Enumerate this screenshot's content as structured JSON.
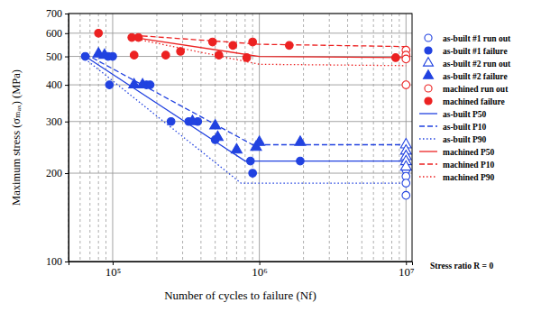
{
  "chart_data": {
    "type": "scatter",
    "x_label": "Number of cycles to failure (Nf)",
    "y_label": "Maximum stress (σₘₐₓ) (MPa)",
    "annotation": "Stress ratio R = 0",
    "log": true,
    "grid": true,
    "legend": "right",
    "xlim": [
      50000,
      11000000
    ],
    "ylim": [
      100,
      700
    ],
    "xticks": [
      {
        "value": 100000,
        "label": "10⁵"
      },
      {
        "value": 1000000,
        "label": "10⁶"
      },
      {
        "value": 10000000,
        "label": "10⁷"
      }
    ],
    "yticks": [
      100,
      200,
      300,
      400,
      500,
      600,
      700
    ],
    "series": [
      {
        "name": "as-built #1 run out",
        "type": "scatter",
        "color": "#2142e0",
        "marker": "circle-open",
        "x": [
          10000000,
          10000000,
          10000000,
          10000000
        ],
        "values": [
          205,
          195,
          185,
          168
        ]
      },
      {
        "name": "as-built #1 failure",
        "type": "scatter",
        "color": "#2142e0",
        "marker": "circle",
        "x": [
          65000,
          93000,
          95000,
          100000,
          170000,
          180000,
          250000,
          330000,
          380000,
          500000,
          870000,
          900000,
          1900000
        ],
        "values": [
          500,
          500,
          400,
          500,
          400,
          400,
          300,
          300,
          300,
          260,
          220,
          200,
          220
        ]
      },
      {
        "name": "as-built #2 run out",
        "type": "scatter",
        "color": "#2142e0",
        "marker": "triangle-open",
        "x": [
          10000000,
          10000000,
          10000000,
          10000000,
          10000000
        ],
        "values": [
          250,
          238,
          228,
          219,
          210
        ]
      },
      {
        "name": "as-built #2 failure",
        "type": "scatter",
        "color": "#2142e0",
        "marker": "triangle",
        "x": [
          80000,
          88000,
          140000,
          160000,
          350000,
          500000,
          520000,
          700000,
          950000,
          1000000,
          1900000
        ],
        "values": [
          510,
          505,
          400,
          400,
          300,
          290,
          265,
          240,
          245,
          255,
          255
        ]
      },
      {
        "name": "machined run out",
        "type": "scatter",
        "color": "#ec2222",
        "marker": "circle-open",
        "x": [
          10000000,
          10000000,
          10000000,
          10000000
        ],
        "values": [
          525,
          505,
          490,
          400
        ]
      },
      {
        "name": "machined failure",
        "type": "scatter",
        "color": "#ec2222",
        "marker": "circle",
        "x": [
          80000,
          135000,
          150000,
          140000,
          230000,
          290000,
          480000,
          530000,
          660000,
          820000,
          900000,
          1600000,
          8500000
        ],
        "values": [
          600,
          580,
          580,
          505,
          505,
          520,
          560,
          505,
          545,
          495,
          560,
          545,
          495
        ]
      },
      {
        "name": "as-built P50",
        "type": "line",
        "color": "#2142e0",
        "line_style": "solid",
        "x": [
          65000,
          800000,
          10000000
        ],
        "values": [
          500,
          220,
          220
        ]
      },
      {
        "name": "as-built P10",
        "type": "line",
        "color": "#2142e0",
        "line_style": "dashed",
        "x": [
          65000,
          900000,
          10000000
        ],
        "values": [
          510,
          250,
          250
        ]
      },
      {
        "name": "as-built P90",
        "type": "line",
        "color": "#2142e0",
        "line_style": "dotted",
        "x": [
          65000,
          750000,
          10000000
        ],
        "values": [
          490,
          185,
          185
        ]
      },
      {
        "name": "machined P50",
        "type": "line",
        "color": "#ec2222",
        "line_style": "solid",
        "x": [
          140000,
          1000000,
          10000000
        ],
        "values": [
          580,
          500,
          495
        ]
      },
      {
        "name": "machined P10",
        "type": "line",
        "color": "#ec2222",
        "line_style": "dashed",
        "x": [
          140000,
          1000000,
          10000000
        ],
        "values": [
          590,
          550,
          540
        ]
      },
      {
        "name": "machined P90",
        "type": "line",
        "color": "#ec2222",
        "line_style": "dotted",
        "x": [
          140000,
          1000000,
          10000000
        ],
        "values": [
          575,
          470,
          465
        ]
      }
    ]
  }
}
